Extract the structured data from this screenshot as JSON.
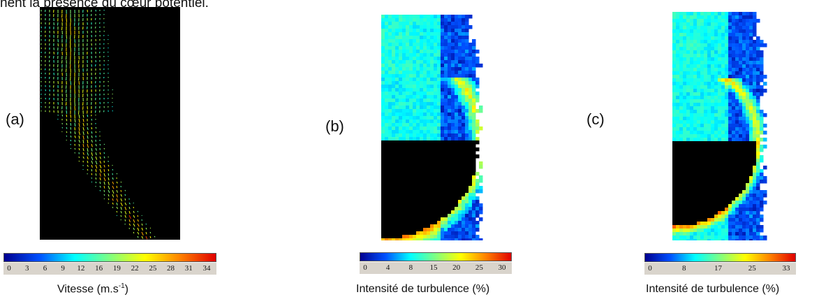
{
  "header_text": "nent la présence du cœur potentiel.",
  "panels": [
    {
      "label": "(a)",
      "colorbar_ticks": [
        "0",
        "3",
        "6",
        "9",
        "12",
        "16",
        "19",
        "22",
        "25",
        "28",
        "31",
        "34"
      ],
      "caption_main": "Vitesse (m.s",
      "caption_sup": "-1",
      "caption_end": ")"
    },
    {
      "label": "(b)",
      "colorbar_ticks": [
        "0",
        "4",
        "8",
        "15",
        "20",
        "25",
        "30"
      ],
      "caption_main": "Intensité de turbulence (%)"
    },
    {
      "label": "(c)",
      "colorbar_ticks": [
        "0",
        "8",
        "17",
        "25",
        "33"
      ],
      "caption_main": "Intensité de turbulence (%)"
    }
  ],
  "colormap": [
    "#00008f",
    "#0050ff",
    "#00ffff",
    "#80ff80",
    "#ffff00",
    "#ff8000",
    "#e00000"
  ]
}
